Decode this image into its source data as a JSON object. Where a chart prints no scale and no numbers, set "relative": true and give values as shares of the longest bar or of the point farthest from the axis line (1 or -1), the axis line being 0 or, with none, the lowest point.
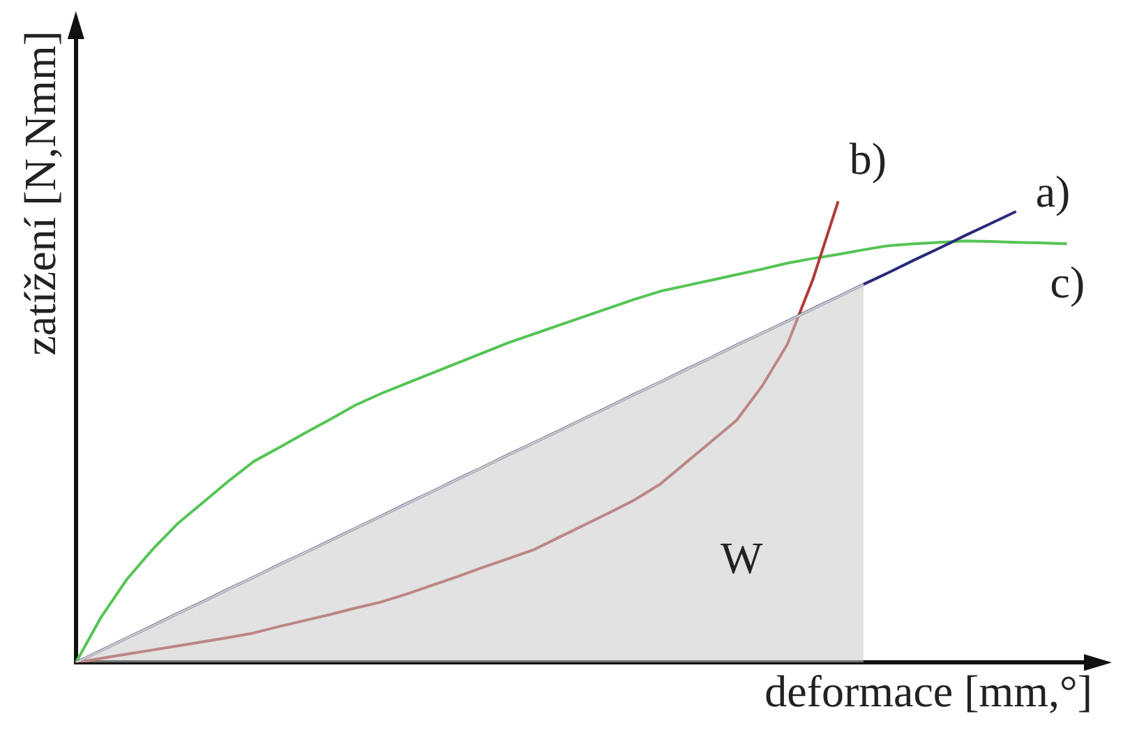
{
  "chart_data": {
    "type": "line",
    "relative": true,
    "xlabel": "deformace [mm,°]",
    "ylabel": "zatížení [N,Nmm]",
    "grid": false,
    "legend": false,
    "marker": "none",
    "line_style": "solid",
    "annotations": [
      "W"
    ],
    "categories": [
      null,
      null,
      null,
      null,
      null,
      null,
      null,
      null,
      null,
      null,
      null,
      null,
      null,
      null,
      null,
      null,
      null,
      null,
      null,
      null,
      null,
      null,
      null,
      null,
      null,
      null,
      null,
      null,
      null,
      null,
      null,
      null,
      null,
      null,
      null,
      null,
      null,
      null,
      null,
      null,
      null
    ],
    "series": [
      {
        "type": "area",
        "color": "#c8c8c8",
        "values": [
          0,
          0.026,
          0.053,
          0.079,
          0.106,
          0.132,
          0.159,
          0.185,
          0.212,
          0.238,
          0.264,
          0.291,
          0.317,
          0.344,
          0.37,
          0.397,
          0.423,
          0.45,
          0.476,
          0.502,
          0.529,
          0.555,
          0.582,
          0.608,
          0.635,
          0.661,
          0.688,
          0.714,
          0.74,
          0.767,
          0.793,
          0.82,
          null,
          null,
          null,
          null,
          null,
          null,
          null,
          null,
          null
        ]
      },
      {
        "name": "a)",
        "color": "#2a2a7a",
        "values": [
          0,
          0.026,
          0.053,
          0.079,
          0.106,
          0.132,
          0.159,
          0.185,
          0.212,
          0.238,
          0.264,
          0.291,
          0.317,
          0.344,
          0.37,
          0.397,
          0.423,
          0.45,
          0.476,
          0.502,
          0.529,
          0.555,
          0.582,
          0.608,
          0.635,
          0.661,
          0.688,
          0.714,
          0.74,
          0.767,
          0.793,
          0.82,
          0.846,
          0.873,
          0.899,
          0.926,
          0.952,
          0.978,
          null,
          null,
          null
        ]
      },
      {
        "name": "b)",
        "color": "#b03a3a",
        "values": [
          0,
          0.009,
          0.018,
          0.027,
          0.036,
          0.045,
          0.054,
          0.064,
          0.078,
          0.091,
          0.104,
          0.118,
          0.131,
          0.148,
          0.167,
          0.186,
          0.206,
          0.225,
          0.244,
          0.271,
          0.298,
          0.325,
          0.353,
          0.387,
          0.433,
          0.479,
          0.525,
          0.599,
          0.69,
          0.83,
          1,
          null,
          null,
          null,
          null,
          null,
          null,
          null,
          null,
          null,
          null
        ]
      },
      {
        "name": "c)",
        "color": "#55c455",
        "values": [
          0,
          0.099,
          0.18,
          0.244,
          0.301,
          0.347,
          0.393,
          0.436,
          0.466,
          0.497,
          0.527,
          0.558,
          0.583,
          0.605,
          0.627,
          0.649,
          0.671,
          0.693,
          0.712,
          0.731,
          0.75,
          0.769,
          0.788,
          0.805,
          0.817,
          0.829,
          0.841,
          0.853,
          0.866,
          0.876,
          0.885,
          0.895,
          0.904,
          0.908,
          0.911,
          0.914,
          0.913,
          0.911,
          0.91,
          0.908,
          null
        ]
      }
    ]
  }
}
